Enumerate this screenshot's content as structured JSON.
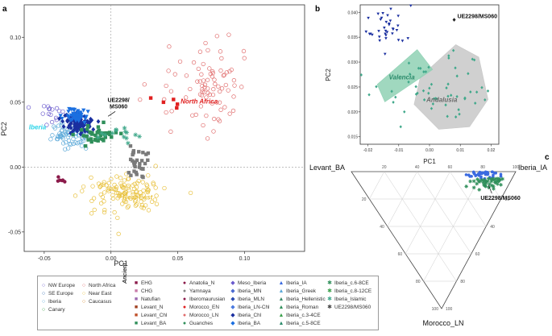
{
  "panels": {
    "a": "a",
    "b": "b",
    "c": "c"
  },
  "chart_data": [
    {
      "panel": "a",
      "type": "scatter",
      "xlabel": "PC1",
      "ylabel": "PC2",
      "xlim": [
        -0.065,
        0.145
      ],
      "ylim": [
        -0.065,
        0.125
      ],
      "xticks": [
        -0.05,
        0.0,
        0.05,
        0.1
      ],
      "xtick_labels": [
        "-0.05",
        "0.00",
        "0.05",
        "0.10"
      ],
      "yticks": [
        -0.05,
        0.0,
        0.05,
        0.1
      ],
      "ytick_labels": [
        "-0.05",
        "0.00",
        "0.05",
        "0.10"
      ],
      "annotation": "UE2298/\nMS060",
      "annotation_point": [
        -0.004,
        0.041
      ],
      "region_labels": [
        {
          "text": "North Africa",
          "x": 0.066,
          "y": 0.049,
          "color": "#e02020"
        },
        {
          "text": "Iberia",
          "x": -0.055,
          "y": 0.029,
          "color": "#2bd4e8"
        },
        {
          "text": "Near East",
          "x": 0.02,
          "y": -0.025,
          "color": "#e8c03a"
        }
      ],
      "series": [
        {
          "name": "Iberia (modern)",
          "marker": "open-circle",
          "color": "#5aa8d8",
          "center": [
            -0.03,
            0.024
          ],
          "spread": [
            0.012,
            0.008
          ],
          "n": 70
        },
        {
          "name": "NW Europe",
          "marker": "open-circle",
          "color": "#6a5acd",
          "center": [
            -0.044,
            0.04
          ],
          "spread": [
            0.007,
            0.008
          ],
          "n": 16
        },
        {
          "name": "Near East",
          "marker": "open-circle",
          "color": "#e8c03a",
          "center": [
            0.01,
            -0.02
          ],
          "spread": [
            0.025,
            0.012
          ],
          "n": 120
        },
        {
          "name": "North Africa",
          "marker": "open-circle",
          "color": "#e06b6b",
          "center": [
            0.07,
            0.06
          ],
          "spread": [
            0.028,
            0.028
          ],
          "n": 85
        },
        {
          "name": "Iberia_Chl",
          "marker": "diamond",
          "color": "#1a2fa0",
          "center": [
            -0.025,
            0.034
          ],
          "spread": [
            0.009,
            0.006
          ],
          "n": 100
        },
        {
          "name": "Iberia_BA",
          "marker": "triangle-down",
          "color": "#1a6fe0",
          "center": [
            -0.026,
            0.04
          ],
          "spread": [
            0.006,
            0.004
          ],
          "n": 50
        },
        {
          "name": "Iberia_Roman",
          "marker": "square",
          "color": "#2f8f5a",
          "center": [
            -0.01,
            0.024
          ],
          "spread": [
            0.012,
            0.007
          ],
          "n": 40
        },
        {
          "name": "Iberia_Islamic",
          "marker": "star",
          "color": "#3fa88a",
          "center": [
            0.005,
            0.025
          ],
          "spread": [
            0.012,
            0.006
          ],
          "n": 14
        },
        {
          "name": "Levant_BA",
          "marker": "square",
          "color": "#7a7a7a",
          "center": [
            0.02,
            0.004
          ],
          "spread": [
            0.006,
            0.01
          ],
          "n": 30
        },
        {
          "name": "Morocco_EN",
          "marker": "square",
          "color": "#e02020",
          "center": [
            0.04,
            0.052
          ],
          "spread": [
            0.015,
            0.006
          ],
          "n": 5
        },
        {
          "name": "Iberomaurusian",
          "marker": "circle",
          "color": "#8b1a4a",
          "center": [
            -0.038,
            -0.01
          ],
          "spread": [
            0.003,
            0.002
          ],
          "n": 6
        }
      ],
      "legend_modern": [
        "NW Europe",
        "North Africa",
        "SE Europe",
        "Near East",
        "Iberia",
        "Caucasus",
        "Canary"
      ],
      "legend_modern_colors": [
        "#6a5acd",
        "#e06b6b",
        "#2d6ab0",
        "#e8c03a",
        "#5aa8d8",
        "#d4892a",
        "#3aa04a"
      ],
      "legend_ancient_title": "Ancient",
      "legend_ancient": [
        [
          "EHG",
          "CHG",
          "Natufian",
          "Levant_N",
          "Levant_Chl",
          "Levant_BA"
        ],
        [
          "Anatolia_N",
          "Yamnaya",
          "Iberomaurusian",
          "Morocco_EN",
          "Morocco_LN",
          "Guanches"
        ],
        [
          "Meso_Iberia",
          "Iberia_MN",
          "Iberia_MLN",
          "Iberia_LN-Chl",
          "Iberia_Chl",
          "Iberia_BA"
        ],
        [
          "Iberia_IA",
          "Iberia_Greek",
          "Iberia_Hellenistic",
          "Iberia_Roman",
          "Iberia_c.3-4CE",
          "Iberia_c.5-8CE"
        ],
        [
          "Iberia_c.6-8CE",
          "Iberia_c.8-12CE",
          "Iberia_Islamic",
          "UE2298/MS060"
        ]
      ]
    },
    {
      "panel": "b",
      "type": "scatter",
      "xlabel": "PC1",
      "ylabel": "PC2",
      "xlim": [
        -0.0225,
        0.0225
      ],
      "ylim": [
        0.0135,
        0.0415
      ],
      "xticks": [
        -0.02,
        -0.01,
        0.0,
        0.01,
        0.02
      ],
      "xtick_labels": [
        "-0.02",
        "-0.01",
        "0.00",
        "0.01",
        "0.02"
      ],
      "yticks": [
        0.015,
        0.02,
        0.025,
        0.03,
        0.035,
        0.04
      ],
      "ytick_labels": [
        "0.015",
        "0.020",
        "0.025",
        "0.030",
        "0.035",
        "0.040"
      ],
      "annotation": "UE2298/MS060",
      "annotation_point": [
        0.008,
        0.0385
      ],
      "region_labels": [
        {
          "text": "Valencia",
          "x": -0.009,
          "y": 0.0265,
          "color": "#2a8a6a"
        },
        {
          "text": "Andalusia",
          "x": 0.004,
          "y": 0.022,
          "color": "#6a6a6a"
        }
      ],
      "hulls": [
        {
          "name": "Andalusia",
          "color": "#c8c8c8",
          "points": [
            [
              0.0085,
              0.0335
            ],
            [
              0.016,
              0.031
            ],
            [
              0.019,
              0.0225
            ],
            [
              0.013,
              0.017
            ],
            [
              0.003,
              0.0165
            ],
            [
              -0.005,
              0.0215
            ],
            [
              -0.003,
              0.027
            ]
          ]
        },
        {
          "name": "Valencia",
          "color": "#8fd1b4",
          "points": [
            [
              -0.017,
              0.0255
            ],
            [
              -0.004,
              0.0325
            ],
            [
              0.001,
              0.0285
            ],
            [
              -0.0145,
              0.022
            ]
          ]
        }
      ],
      "series": [
        {
          "name": "Iberia_Chl / Iberia_BA",
          "marker": "triangle-down",
          "color": "#1a2fa0",
          "center": [
            -0.015,
            0.037
          ],
          "spread": [
            0.005,
            0.003
          ],
          "n": 35
        },
        {
          "name": "Iberia_Islamic",
          "marker": "diamond",
          "color": "#3fa88a",
          "center": [
            0.002,
            0.024
          ],
          "spread": [
            0.012,
            0.005
          ],
          "n": 55
        }
      ]
    },
    {
      "panel": "c",
      "type": "ternary",
      "axes": [
        "Levant_BA",
        "Iberia_IA",
        "Morocco_LN"
      ],
      "ticks": [
        20,
        40,
        60,
        80,
        100
      ],
      "annotation": "UE2298/MS060",
      "annotation_point": {
        "Levant_BA": 0.12,
        "Iberia_IA": 0.78,
        "Morocco_LN": 0.1
      },
      "series": [
        {
          "name": "Iberia_BA / Iberia_IA",
          "marker": "circle",
          "color": "#3a6ae0",
          "center": {
            "Levant_BA": 0.2,
            "Iberia_IA": 0.8,
            "Morocco_LN": 0.0
          },
          "n": 40
        },
        {
          "name": "Iberia_Roman / Islamic",
          "marker": "star",
          "color": "#2f8f5a",
          "center": {
            "Levant_BA": 0.13,
            "Iberia_IA": 0.82,
            "Morocco_LN": 0.05
          },
          "n": 45
        }
      ]
    }
  ]
}
